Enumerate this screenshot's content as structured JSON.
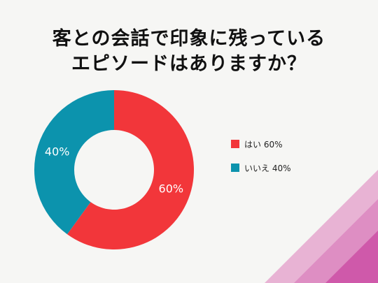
{
  "title_lines": [
    "客との会話で印象に残っている",
    "エピソードはありますか？"
  ],
  "chart_data": {
    "type": "pie",
    "style": "donut",
    "slices": [
      {
        "label": "はい 60%",
        "value": 60,
        "value_label": "60%",
        "color": "#f2363a"
      },
      {
        "label": "いいえ 40%",
        "value": 40,
        "value_label": "40%",
        "color": "#0c93ad"
      }
    ],
    "legend_position": "right"
  },
  "decoration_colors": [
    "#e8b3d4",
    "#de8ec3",
    "#cf59aa"
  ]
}
